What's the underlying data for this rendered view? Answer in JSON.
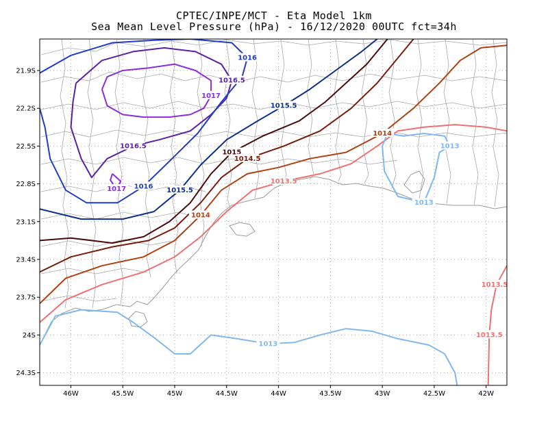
{
  "title": {
    "line1": "CPTEC/INPE/MCT -  Eta Model 1km",
    "line2": "Sea Mean Level Pressure (hPa) - 16/12/2020 00UTC fct=34h"
  },
  "map": {
    "lon_range": [
      -46.3,
      -41.8
    ],
    "lat_range": [
      -24.4,
      -21.65
    ],
    "lon_ticks": [
      {
        "value": -46.0,
        "label": "46W"
      },
      {
        "value": -45.5,
        "label": "45.5W"
      },
      {
        "value": -45.0,
        "label": "45W"
      },
      {
        "value": -44.5,
        "label": "44.5W"
      },
      {
        "value": -44.0,
        "label": "44W"
      },
      {
        "value": -43.5,
        "label": "43.5W"
      },
      {
        "value": -43.0,
        "label": "43W"
      },
      {
        "value": -42.5,
        "label": "42.5W"
      },
      {
        "value": -42.0,
        "label": "42W"
      }
    ],
    "lat_ticks": [
      {
        "value": -21.9,
        "label": "21.9S"
      },
      {
        "value": -22.2,
        "label": "22.2S"
      },
      {
        "value": -22.5,
        "label": "22.5S"
      },
      {
        "value": -22.8,
        "label": "22.8S"
      },
      {
        "value": -23.1,
        "label": "23.1S"
      },
      {
        "value": -23.4,
        "label": "23.4S"
      },
      {
        "value": -23.7,
        "label": "23.7S"
      },
      {
        "value": -24.0,
        "label": "24S"
      },
      {
        "value": -24.3,
        "label": "24.3S"
      }
    ],
    "contours": [
      {
        "level": "1017",
        "color": "#8a2be2",
        "labels": [
          "1017",
          "1017"
        ],
        "lines": [
          [
            [
              -45.7,
              -22.05
            ],
            [
              -45.65,
              -21.95
            ],
            [
              -45.5,
              -21.9
            ],
            [
              -45.25,
              -21.88
            ],
            [
              -45.0,
              -21.85
            ],
            [
              -44.8,
              -21.9
            ],
            [
              -44.65,
              -21.98
            ],
            [
              -44.65,
              -22.1
            ],
            [
              -44.72,
              -22.2
            ],
            [
              -44.85,
              -22.25
            ],
            [
              -45.05,
              -22.27
            ],
            [
              -45.3,
              -22.27
            ],
            [
              -45.5,
              -22.25
            ],
            [
              -45.65,
              -22.18
            ],
            [
              -45.7,
              -22.05
            ]
          ],
          [
            [
              -45.6,
              -22.72
            ],
            [
              -45.62,
              -22.77
            ],
            [
              -45.56,
              -22.84
            ],
            [
              -45.52,
              -22.78
            ],
            [
              -45.6,
              -22.72
            ]
          ]
        ]
      },
      {
        "level": "1016.5",
        "color": "#5a1ea8",
        "labels": [
          "1016.5",
          "1016.5"
        ],
        "lines": [
          [
            [
              -45.95,
              -22.0
            ],
            [
              -45.7,
              -21.82
            ],
            [
              -45.4,
              -21.75
            ],
            [
              -45.1,
              -21.72
            ],
            [
              -44.8,
              -21.75
            ],
            [
              -44.55,
              -21.85
            ],
            [
              -44.45,
              -21.98
            ],
            [
              -44.5,
              -22.12
            ],
            [
              -44.65,
              -22.25
            ],
            [
              -44.85,
              -22.38
            ],
            [
              -45.15,
              -22.45
            ],
            [
              -45.4,
              -22.5
            ],
            [
              -45.65,
              -22.6
            ],
            [
              -45.8,
              -22.75
            ],
            [
              -45.9,
              -22.6
            ],
            [
              -46.0,
              -22.35
            ],
            [
              -45.98,
              -22.15
            ],
            [
              -45.95,
              -22.0
            ]
          ]
        ]
      },
      {
        "level": "1016",
        "color": "#1e3cc8",
        "labels": [
          "1016",
          "1016"
        ],
        "lines": [
          [
            [
              -46.3,
              -21.92
            ],
            [
              -46.0,
              -21.78
            ],
            [
              -45.6,
              -21.68
            ],
            [
              -45.2,
              -21.66
            ],
            [
              -44.85,
              -21.65
            ],
            [
              -44.45,
              -21.68
            ],
            [
              -44.3,
              -21.8
            ],
            [
              -44.35,
              -21.95
            ],
            [
              -44.55,
              -22.15
            ],
            [
              -44.78,
              -22.4
            ],
            [
              -45.05,
              -22.62
            ],
            [
              -45.3,
              -22.82
            ],
            [
              -45.55,
              -22.95
            ],
            [
              -45.85,
              -22.95
            ],
            [
              -46.05,
              -22.85
            ],
            [
              -46.2,
              -22.6
            ],
            [
              -46.25,
              -22.35
            ],
            [
              -46.3,
              -22.2
            ]
          ]
        ]
      },
      {
        "level": "1015.5",
        "color": "#0b2d8c",
        "labels": [
          "1015.5",
          "1015.5"
        ],
        "lines": [
          [
            [
              -46.3,
              -23.0
            ],
            [
              -45.9,
              -23.08
            ],
            [
              -45.5,
              -23.08
            ],
            [
              -45.2,
              -23.02
            ],
            [
              -44.95,
              -22.85
            ],
            [
              -44.75,
              -22.65
            ],
            [
              -44.5,
              -22.45
            ],
            [
              -44.2,
              -22.3
            ],
            [
              -43.95,
              -22.18
            ],
            [
              -43.7,
              -22.05
            ],
            [
              -43.45,
              -21.9
            ],
            [
              -43.2,
              -21.75
            ],
            [
              -43.05,
              -21.65
            ]
          ]
        ]
      },
      {
        "level": "1015",
        "color": "#4a0a0a",
        "labels": [
          "1015"
        ],
        "lines": [
          [
            [
              -46.3,
              -23.25
            ],
            [
              -46.0,
              -23.23
            ],
            [
              -45.6,
              -23.27
            ],
            [
              -45.3,
              -23.22
            ],
            [
              -45.05,
              -23.1
            ],
            [
              -44.85,
              -22.95
            ],
            [
              -44.65,
              -22.72
            ],
            [
              -44.45,
              -22.55
            ],
            [
              -44.15,
              -22.42
            ],
            [
              -43.8,
              -22.3
            ],
            [
              -43.55,
              -22.15
            ],
            [
              -43.35,
              -22.0
            ],
            [
              -43.15,
              -21.85
            ],
            [
              -42.95,
              -21.65
            ]
          ]
        ]
      },
      {
        "level": "1014.5",
        "color": "#7a1a0a",
        "labels": [
          "1014.5"
        ],
        "lines": [
          [
            [
              -46.3,
              -23.5
            ],
            [
              -46.0,
              -23.38
            ],
            [
              -45.6,
              -23.3
            ],
            [
              -45.25,
              -23.25
            ],
            [
              -45.0,
              -23.15
            ],
            [
              -44.75,
              -22.95
            ],
            [
              -44.55,
              -22.75
            ],
            [
              -44.3,
              -22.6
            ],
            [
              -43.95,
              -22.5
            ],
            [
              -43.6,
              -22.38
            ],
            [
              -43.3,
              -22.2
            ],
            [
              -43.05,
              -22.0
            ],
            [
              -42.85,
              -21.8
            ],
            [
              -42.7,
              -21.65
            ]
          ]
        ]
      },
      {
        "level": "1014",
        "color": "#b04010",
        "labels": [
          "1014",
          "1014"
        ],
        "lines": [
          [
            [
              -46.3,
              -23.75
            ],
            [
              -46.05,
              -23.55
            ],
            [
              -45.7,
              -23.45
            ],
            [
              -45.3,
              -23.38
            ],
            [
              -45.0,
              -23.25
            ],
            [
              -44.75,
              -23.05
            ],
            [
              -44.55,
              -22.85
            ],
            [
              -44.3,
              -22.72
            ],
            [
              -44.0,
              -22.67
            ],
            [
              -43.7,
              -22.6
            ],
            [
              -43.35,
              -22.55
            ],
            [
              -43.0,
              -22.4
            ],
            [
              -42.7,
              -22.2
            ],
            [
              -42.45,
              -22.0
            ],
            [
              -42.25,
              -21.82
            ],
            [
              -42.05,
              -21.72
            ],
            [
              -41.8,
              -21.7
            ]
          ]
        ]
      },
      {
        "level": "1013.5",
        "color": "#f07070",
        "labels": [
          "1013.5",
          "1013.5",
          "1013.5"
        ],
        "lines": [
          [
            [
              -46.3,
              -23.9
            ],
            [
              -46.05,
              -23.72
            ],
            [
              -45.7,
              -23.6
            ],
            [
              -45.3,
              -23.5
            ],
            [
              -45.0,
              -23.38
            ],
            [
              -44.75,
              -23.22
            ],
            [
              -44.5,
              -23.02
            ],
            [
              -44.25,
              -22.85
            ],
            [
              -43.95,
              -22.78
            ],
            [
              -43.6,
              -22.72
            ],
            [
              -43.3,
              -22.64
            ],
            [
              -43.05,
              -22.5
            ],
            [
              -42.85,
              -22.38
            ],
            [
              -42.6,
              -22.35
            ],
            [
              -42.3,
              -22.33
            ],
            [
              -42.0,
              -22.35
            ],
            [
              -41.8,
              -22.38
            ]
          ],
          [
            [
              -41.8,
              -23.45
            ],
            [
              -41.9,
              -23.6
            ],
            [
              -41.95,
              -23.8
            ],
            [
              -41.97,
              -24.0
            ],
            [
              -41.98,
              -24.4
            ]
          ]
        ]
      },
      {
        "level": "1013",
        "color": "#7fb8f0",
        "labels": [
          "1013",
          "1013",
          "1013"
        ],
        "lines": [
          [
            [
              -46.3,
              -24.08
            ],
            [
              -46.15,
              -23.85
            ],
            [
              -45.9,
              -23.8
            ],
            [
              -45.55,
              -23.82
            ],
            [
              -45.4,
              -23.9
            ],
            [
              -45.2,
              -24.02
            ],
            [
              -45.0,
              -24.15
            ],
            [
              -44.85,
              -24.15
            ],
            [
              -44.65,
              -24.0
            ],
            [
              -44.4,
              -24.03
            ],
            [
              -44.1,
              -24.07
            ],
            [
              -43.85,
              -24.06
            ],
            [
              -43.6,
              -24.0
            ],
            [
              -43.35,
              -23.95
            ],
            [
              -43.1,
              -23.97
            ],
            [
              -42.85,
              -24.03
            ],
            [
              -42.55,
              -24.08
            ],
            [
              -42.4,
              -24.15
            ],
            [
              -42.3,
              -24.3
            ],
            [
              -42.28,
              -24.4
            ]
          ],
          [
            [
              -42.95,
              -22.4
            ],
            [
              -43.0,
              -22.5
            ],
            [
              -42.98,
              -22.7
            ],
            [
              -42.85,
              -22.9
            ],
            [
              -42.6,
              -22.95
            ],
            [
              -42.5,
              -22.75
            ],
            [
              -42.45,
              -22.55
            ],
            [
              -42.35,
              -22.5
            ],
            [
              -42.4,
              -22.42
            ],
            [
              -42.6,
              -22.4
            ],
            [
              -42.8,
              -22.42
            ],
            [
              -42.95,
              -22.4
            ]
          ]
        ]
      }
    ]
  }
}
